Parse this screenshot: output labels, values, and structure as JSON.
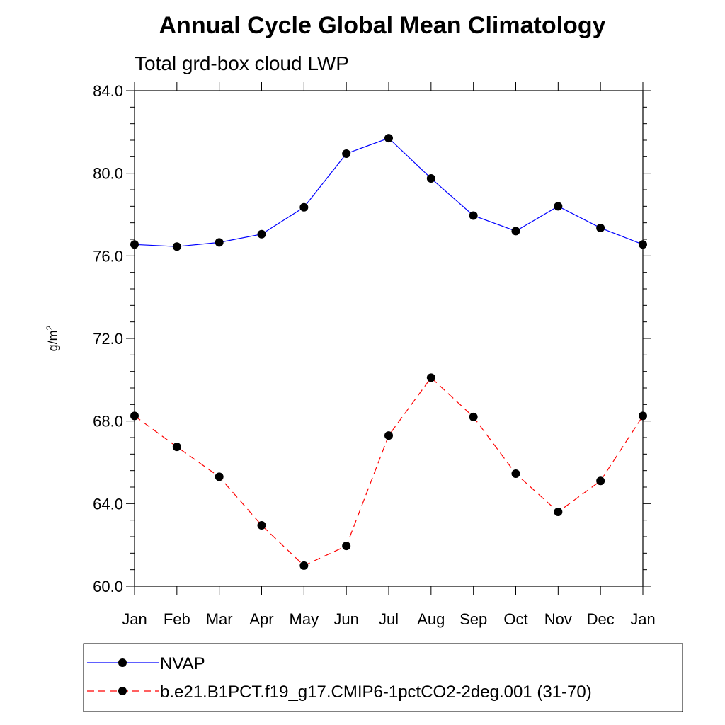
{
  "chart_data": {
    "type": "line",
    "title": "Annual Cycle Global Mean Climatology",
    "subtitle": "Total grd-box cloud LWP",
    "ylabel_base": "g/m",
    "ylabel_sup": "2",
    "xlabel": "",
    "categories": [
      "Jan",
      "Feb",
      "Mar",
      "Apr",
      "May",
      "Jun",
      "Jul",
      "Aug",
      "Sep",
      "Oct",
      "Nov",
      "Dec",
      "Jan"
    ],
    "ylim": [
      60.0,
      84.0
    ],
    "yticks": [
      "60.0",
      "64.0",
      "68.0",
      "72.0",
      "76.0",
      "80.0",
      "84.0"
    ],
    "series": [
      {
        "name": "NVAP",
        "color": "#0000ff",
        "dash": "solid",
        "marker": "filled-circle",
        "values": [
          76.55,
          76.45,
          76.65,
          77.05,
          78.35,
          80.95,
          81.7,
          79.75,
          77.95,
          77.2,
          78.4,
          77.35,
          76.55
        ]
      },
      {
        "name": "b.e21.B1PCT.f19_g17.CMIP6-1pctCO2-2deg.001 (31-70)",
        "color": "#ff0000",
        "dash": "dashed",
        "marker": "filled-circle",
        "values": [
          68.25,
          66.75,
          65.3,
          62.95,
          61.0,
          61.95,
          67.3,
          70.1,
          68.2,
          65.45,
          63.6,
          65.1,
          68.25
        ]
      }
    ],
    "grid": false,
    "legend_position": "bottom"
  }
}
